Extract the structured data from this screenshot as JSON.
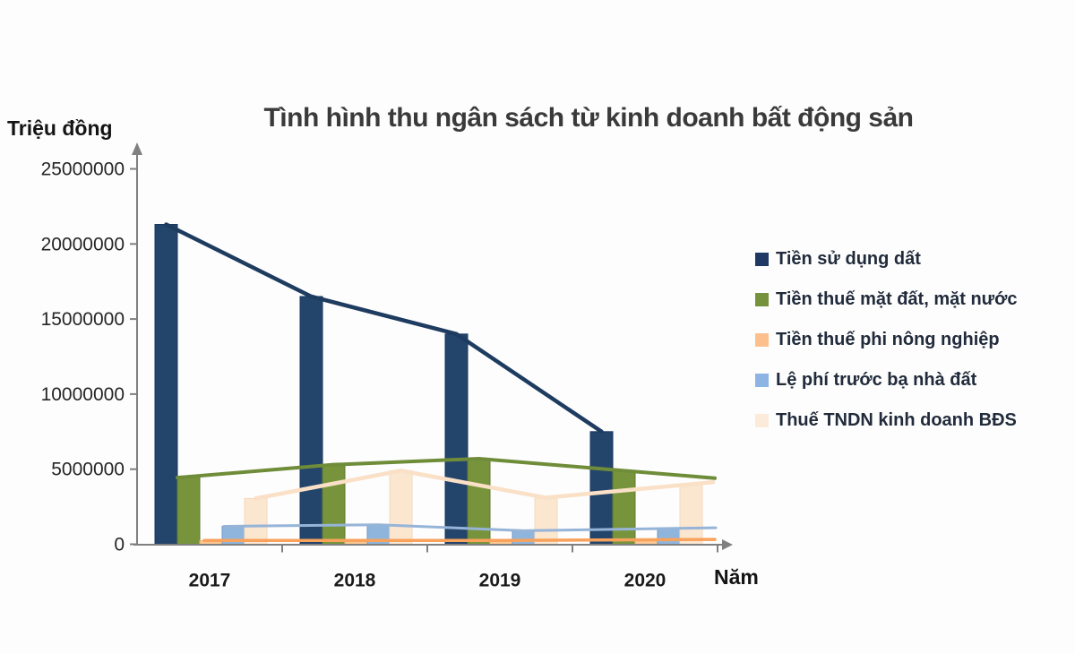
{
  "chart_data": {
    "type": "bar",
    "subtype": "clustered-columns-with-line-overlay-per-series",
    "title": "Tình hình thu ngân sách từ kinh doanh bất động sản",
    "xlabel": "Năm",
    "ylabel": "Triệu đồng",
    "categories": [
      "2017",
      "2018",
      "2019",
      "2020"
    ],
    "series": [
      {
        "id": "tien-su-dung-dat",
        "name": "Tiền sử dụng dất",
        "bar_color": "#24456B",
        "border_color": "#17375E",
        "line_color": "#1E3B60",
        "legend_color": "#1F3864",
        "values": [
          21300000,
          16500000,
          14000000,
          7500000
        ]
      },
      {
        "id": "tien-thue-mat-dat-mat-nuoc",
        "name": "Tiền thuế mặt đất, mặt nước",
        "bar_color": "#77943D",
        "border_color": "#5F7931",
        "line_color": "#6F8C39",
        "legend_color": "#76923C",
        "values": [
          4500000,
          5300000,
          5700000,
          4900000
        ]
      },
      {
        "id": "tien-thue-phi-nong-nghiep",
        "name": "Tiền thuế phi nông nghiệp",
        "bar_color": "#FBC792",
        "border_color": "#F2B277",
        "line_color": "#F9A25B",
        "legend_color": "#FBC08C",
        "values": [
          250000,
          250000,
          250000,
          300000
        ]
      },
      {
        "id": "le-phi-truoc-ba-nha-dat",
        "name": "Lệ phí trước bạ nhà đất",
        "bar_color": "#8FB5DD",
        "border_color": "#7097C9",
        "line_color": "#96B4D8",
        "legend_color": "#8DB4E2",
        "values": [
          1200000,
          1300000,
          900000,
          1050000
        ]
      },
      {
        "id": "thue-tndn-kinh-doanh-bds",
        "name": "Thuế TNDN kinh doanh BĐS",
        "bar_color": "#FBE6D0",
        "border_color": "#F5D9C0",
        "line_color": "#FAE0C6",
        "legend_color": "#FCEADB",
        "values": [
          3050000,
          4900000,
          3100000,
          4000000
        ]
      }
    ],
    "ylim": [
      0,
      25000000
    ],
    "y_ticks": [
      0,
      5000000,
      10000000,
      15000000,
      20000000,
      25000000
    ],
    "grid": false,
    "legend_position": "right",
    "axis_color": "#808080"
  }
}
